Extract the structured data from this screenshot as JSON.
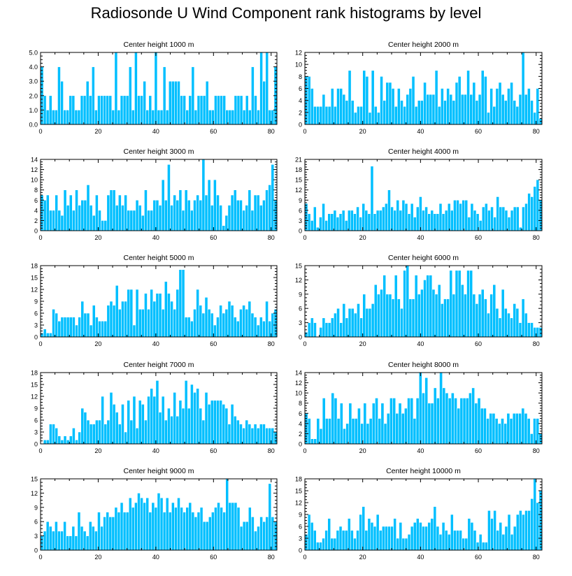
{
  "title": "Radiosonde U Wind Component rank histograms by level",
  "bar_color": "#00bfff",
  "chart_data": [
    {
      "type": "bar",
      "title": "Center height 1000 m",
      "xlim": [
        0,
        82
      ],
      "ylim": [
        0,
        5
      ],
      "xticks": [
        0,
        20,
        40,
        60,
        80
      ],
      "yticks": [
        0,
        1,
        2,
        3,
        4,
        5
      ],
      "ytick_labels": [
        "0.0",
        "1.0",
        "2.0",
        "3.0",
        "4.0",
        "5.0"
      ],
      "values": [
        4,
        2,
        1,
        2,
        1,
        1,
        4,
        3,
        1,
        1,
        2,
        2,
        1,
        1,
        2,
        2,
        3,
        2,
        4,
        1,
        2,
        2,
        2,
        2,
        2,
        1,
        5,
        1,
        2,
        2,
        2,
        4,
        1,
        5,
        2,
        2,
        3,
        1,
        2,
        1,
        5,
        1,
        1,
        4,
        1,
        3,
        3,
        3,
        3,
        2,
        2,
        1,
        2,
        4,
        1,
        2,
        2,
        2,
        3,
        1,
        1,
        2,
        2,
        2,
        2,
        1,
        1,
        1,
        2,
        2,
        2,
        1,
        2,
        1,
        4,
        2,
        1,
        5,
        3,
        5,
        1,
        1,
        4
      ]
    },
    {
      "type": "bar",
      "title": "Center height 2000 m",
      "xlim": [
        0,
        82
      ],
      "ylim": [
        0,
        12
      ],
      "xticks": [
        0,
        20,
        40,
        60,
        80
      ],
      "yticks": [
        0,
        2,
        4,
        6,
        8,
        10,
        12
      ],
      "ytick_labels": [
        "0",
        "2",
        "4",
        "6",
        "8",
        "10",
        "12"
      ],
      "values": [
        8,
        8,
        6,
        3,
        3,
        3,
        5,
        3,
        3,
        6,
        3,
        6,
        6,
        5,
        4,
        9,
        4,
        2,
        3,
        3,
        9,
        8,
        2,
        9,
        3,
        2,
        8,
        4,
        7,
        7,
        6,
        3,
        6,
        4,
        3,
        5,
        6,
        8,
        3,
        4,
        4,
        7,
        5,
        5,
        5,
        9,
        3,
        6,
        4,
        6,
        5,
        4,
        7,
        8,
        5,
        5,
        9,
        5,
        7,
        4,
        5,
        9,
        8,
        2,
        6,
        3,
        6,
        7,
        5,
        4,
        6,
        7,
        4,
        3,
        5,
        12,
        5,
        6,
        4,
        2,
        6,
        1
      ]
    },
    {
      "type": "bar",
      "title": "Center height 3000 m",
      "xlim": [
        0,
        82
      ],
      "ylim": [
        0,
        14
      ],
      "xticks": [
        0,
        20,
        40,
        60,
        80
      ],
      "yticks": [
        0,
        2,
        4,
        6,
        8,
        10,
        12,
        14
      ],
      "ytick_labels": [
        "0",
        "2",
        "4",
        "6",
        "8",
        "10",
        "12",
        "14"
      ],
      "values": [
        7,
        6,
        7,
        4,
        4,
        7,
        4,
        3,
        8,
        5,
        7,
        4,
        8,
        5,
        6,
        6,
        9,
        5,
        3,
        7,
        4,
        2,
        2,
        7,
        8,
        8,
        5,
        7,
        5,
        7,
        4,
        4,
        4,
        6,
        5,
        3,
        8,
        4,
        4,
        6,
        6,
        5,
        10,
        6,
        13,
        5,
        7,
        6,
        8,
        4,
        8,
        6,
        4,
        6,
        7,
        6,
        14,
        7,
        10,
        5,
        10,
        7,
        5,
        1,
        3,
        5,
        7,
        8,
        6,
        6,
        4,
        5,
        8,
        4,
        7,
        7,
        5,
        6,
        8,
        9,
        13,
        6
      ]
    },
    {
      "type": "bar",
      "title": "Center height 4000 m",
      "xlim": [
        0,
        82
      ],
      "ylim": [
        0,
        21
      ],
      "xticks": [
        0,
        20,
        40,
        60,
        80
      ],
      "yticks": [
        0,
        3,
        6,
        9,
        12,
        15,
        18,
        21
      ],
      "ytick_labels": [
        "0",
        "3",
        "6",
        "9",
        "12",
        "15",
        "18",
        "21"
      ],
      "values": [
        8,
        5,
        3,
        7,
        1,
        4,
        8,
        3,
        5,
        5,
        6,
        4,
        5,
        6,
        3,
        6,
        6,
        5,
        7,
        4,
        8,
        6,
        5,
        19,
        5,
        6,
        6,
        7,
        8,
        12,
        7,
        6,
        9,
        6,
        9,
        8,
        5,
        8,
        4,
        7,
        10,
        6,
        7,
        5,
        6,
        5,
        5,
        8,
        5,
        6,
        8,
        6,
        9,
        9,
        8,
        9,
        9,
        4,
        8,
        6,
        5,
        3,
        7,
        8,
        6,
        7,
        4,
        10,
        7,
        7,
        6,
        4,
        6,
        7,
        7,
        1,
        7,
        8,
        11,
        10,
        13,
        15,
        9
      ]
    },
    {
      "type": "bar",
      "title": "Center height 5000 m",
      "xlim": [
        0,
        82
      ],
      "ylim": [
        0,
        18
      ],
      "xticks": [
        0,
        20,
        40,
        60,
        80
      ],
      "yticks": [
        0,
        3,
        6,
        9,
        12,
        15,
        18
      ],
      "ytick_labels": [
        "0",
        "3",
        "6",
        "9",
        "12",
        "15",
        "18"
      ],
      "values": [
        1,
        2,
        1,
        1,
        7,
        6,
        4,
        5,
        5,
        5,
        5,
        5,
        3,
        5,
        9,
        6,
        6,
        3,
        8,
        5,
        4,
        4,
        4,
        8,
        9,
        8,
        13,
        7,
        9,
        9,
        12,
        12,
        3,
        12,
        7,
        7,
        11,
        7,
        12,
        9,
        11,
        11,
        7,
        14,
        11,
        9,
        7,
        12,
        17,
        17,
        5,
        5,
        4,
        7,
        12,
        8,
        6,
        10,
        7,
        6,
        3,
        5,
        8,
        6,
        7,
        9,
        8,
        5,
        4,
        7,
        8,
        7,
        9,
        6,
        5,
        3,
        5,
        4,
        9,
        4,
        6,
        7
      ]
    },
    {
      "type": "bar",
      "title": "Center height 6000 m",
      "xlim": [
        0,
        82
      ],
      "ylim": [
        0,
        15
      ],
      "xticks": [
        0,
        20,
        40,
        60,
        80
      ],
      "yticks": [
        0,
        3,
        6,
        9,
        12,
        15
      ],
      "ytick_labels": [
        "0",
        "3",
        "6",
        "9",
        "12",
        "15"
      ],
      "values": [
        1,
        3,
        4,
        3,
        0,
        2,
        4,
        3,
        3,
        4,
        5,
        6,
        3,
        7,
        4,
        6,
        6,
        5,
        7,
        4,
        9,
        6,
        6,
        7,
        11,
        9,
        10,
        13,
        9,
        9,
        8,
        13,
        8,
        6,
        14,
        15,
        8,
        8,
        13,
        9,
        10,
        12,
        13,
        13,
        10,
        9,
        11,
        7,
        8,
        8,
        14,
        9,
        14,
        14,
        11,
        9,
        14,
        14,
        9,
        7,
        9,
        10,
        8,
        5,
        9,
        11,
        6,
        4,
        10,
        6,
        5,
        4,
        7,
        6,
        3,
        8,
        5,
        3,
        3,
        2,
        2,
        2
      ]
    },
    {
      "type": "bar",
      "title": "Center height 7000 m",
      "xlim": [
        0,
        82
      ],
      "ylim": [
        0,
        18
      ],
      "xticks": [
        0,
        20,
        40,
        60,
        80
      ],
      "yticks": [
        0,
        3,
        6,
        9,
        12,
        15,
        18
      ],
      "ytick_labels": [
        "0",
        "3",
        "6",
        "9",
        "12",
        "15",
        "18"
      ],
      "values": [
        0,
        1,
        1,
        5,
        5,
        4,
        2,
        1,
        2,
        1,
        2,
        4,
        1,
        3,
        9,
        8,
        6,
        5,
        5,
        6,
        6,
        12,
        5,
        6,
        13,
        10,
        8,
        5,
        10,
        3,
        11,
        6,
        12,
        4,
        11,
        10,
        6,
        12,
        14,
        12,
        16,
        8,
        12,
        6,
        9,
        7,
        13,
        7,
        11,
        9,
        16,
        9,
        15,
        13,
        14,
        9,
        6,
        13,
        10,
        11,
        11,
        11,
        11,
        10,
        9,
        5,
        10,
        7,
        6,
        5,
        4,
        6,
        5,
        4,
        5,
        4,
        5,
        5,
        4,
        4,
        4,
        3
      ]
    },
    {
      "type": "bar",
      "title": "Center height 8000 m",
      "xlim": [
        0,
        82
      ],
      "ylim": [
        0,
        14
      ],
      "xticks": [
        0,
        20,
        40,
        60,
        80
      ],
      "yticks": [
        0,
        2,
        4,
        6,
        8,
        10,
        12,
        14
      ],
      "ytick_labels": [
        "0",
        "2",
        "4",
        "6",
        "8",
        "10",
        "12",
        "14"
      ],
      "values": [
        6,
        5,
        1,
        1,
        5,
        3,
        9,
        5,
        5,
        10,
        9,
        5,
        8,
        3,
        4,
        8,
        5,
        5,
        7,
        4,
        8,
        4,
        5,
        8,
        9,
        5,
        8,
        4,
        6,
        9,
        9,
        6,
        8,
        6,
        7,
        9,
        9,
        5,
        9,
        14,
        10,
        13,
        8,
        8,
        11,
        9,
        14,
        11,
        10,
        9,
        10,
        9,
        7,
        9,
        9,
        9,
        10,
        11,
        8,
        9,
        7,
        7,
        5,
        6,
        6,
        5,
        4,
        5,
        4,
        6,
        5,
        6,
        6,
        6,
        7,
        6,
        5,
        2,
        5,
        5,
        2
      ]
    },
    {
      "type": "bar",
      "title": "Center height 9000 m",
      "xlim": [
        0,
        82
      ],
      "ylim": [
        0,
        15
      ],
      "xticks": [
        0,
        20,
        40,
        60,
        80
      ],
      "yticks": [
        0,
        3,
        6,
        9,
        12,
        15
      ],
      "ytick_labels": [
        "0",
        "3",
        "6",
        "9",
        "12",
        "15"
      ],
      "values": [
        3,
        4,
        6,
        5,
        4,
        6,
        4,
        4,
        6,
        3,
        3,
        5,
        3,
        8,
        5,
        4,
        3,
        6,
        5,
        4,
        8,
        5,
        7,
        8,
        7,
        7,
        9,
        8,
        10,
        8,
        8,
        11,
        9,
        10,
        12,
        11,
        10,
        11,
        8,
        10,
        9,
        12,
        11,
        8,
        11,
        8,
        10,
        9,
        11,
        9,
        8,
        9,
        10,
        8,
        7,
        8,
        9,
        6,
        6,
        7,
        8,
        9,
        10,
        9,
        8,
        15,
        10,
        10,
        10,
        9,
        5,
        6,
        6,
        9,
        7,
        4,
        5,
        7,
        6,
        7,
        14,
        7,
        6
      ]
    },
    {
      "type": "bar",
      "title": "Center height 10000 m",
      "xlim": [
        0,
        82
      ],
      "ylim": [
        0,
        18
      ],
      "xticks": [
        0,
        20,
        40,
        60,
        80
      ],
      "yticks": [
        0,
        3,
        6,
        9,
        12,
        15,
        18
      ],
      "ytick_labels": [
        "0",
        "3",
        "6",
        "9",
        "12",
        "15",
        "18"
      ],
      "values": [
        4,
        9,
        7,
        5,
        2,
        2,
        3,
        5,
        8,
        3,
        3,
        5,
        6,
        5,
        5,
        8,
        5,
        3,
        5,
        9,
        11,
        5,
        8,
        7,
        6,
        9,
        5,
        6,
        6,
        6,
        6,
        8,
        3,
        7,
        3,
        3,
        4,
        6,
        7,
        8,
        7,
        6,
        6,
        7,
        8,
        11,
        6,
        4,
        7,
        5,
        4,
        9,
        5,
        5,
        5,
        3,
        3,
        8,
        7,
        5,
        2,
        4,
        2,
        2,
        10,
        8,
        10,
        5,
        7,
        4,
        6,
        9,
        4,
        6,
        9,
        10,
        9,
        10,
        10,
        13,
        18,
        12,
        15
      ]
    }
  ]
}
